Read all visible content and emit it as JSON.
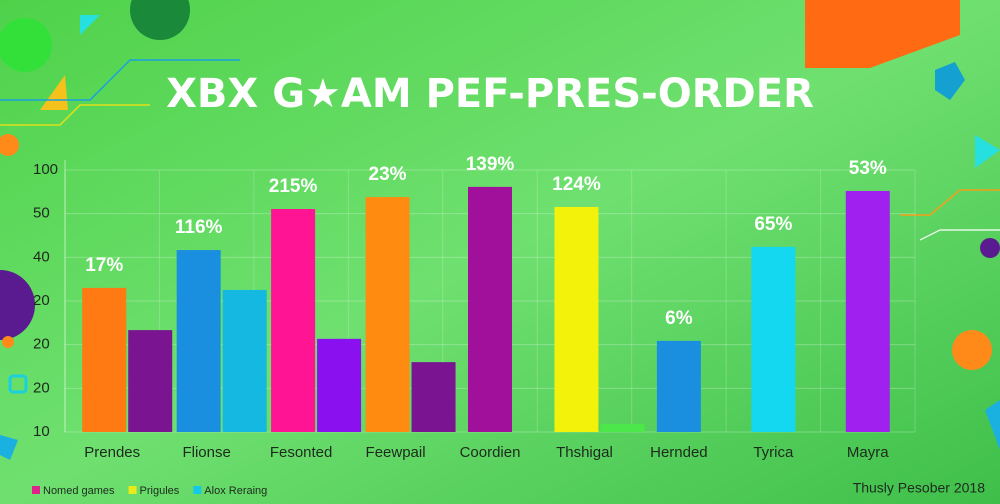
{
  "chart_data": {
    "type": "bar",
    "title": "XBX G★AM PEF-PRES-ORDER",
    "footer": "Thusly Pesober 2018",
    "y_axis_labels": [
      "100",
      "50",
      "40",
      "20",
      "20",
      "20",
      "10"
    ],
    "ylim": [
      10,
      100
    ],
    "categories": [
      "Prendes",
      "Flionse",
      "Fesonted",
      "Feewpail",
      "Coordien",
      "Thshigal",
      "Hernded",
      "Tyrica",
      "Mayra"
    ],
    "bar_labels": [
      "17%",
      "116%",
      "215%",
      "23%",
      "139%",
      "124%",
      "6%",
      "65%",
      "53%"
    ],
    "series": [
      {
        "name": "Nomed games",
        "color": "#e0218a",
        "colors": [
          "#ff7a12",
          "#1a8fe0",
          "#ff1493",
          "#ff8c10",
          "#a0109a",
          "#f2f20a",
          "#1a8fe0",
          "#14d8f0",
          "#a020f0"
        ],
        "values": [
          59.5,
          72.5,
          86.6,
          90.7,
          94.2,
          87.3,
          41.3,
          73.6,
          92.8
        ]
      },
      {
        "name": "Prigules",
        "color": "#e8ea1a",
        "colors": [
          "#7a1490",
          "#14b8e0",
          "#8a10f0",
          "#7a1490",
          null,
          "#4ce84a",
          null,
          null,
          null
        ],
        "values": [
          45,
          58.8,
          42,
          34,
          null,
          12.7,
          null,
          null,
          null
        ]
      },
      {
        "name": "Alox Reraing",
        "color": "#14c8e8",
        "values": [
          null,
          null,
          null,
          null,
          null,
          null,
          null,
          null,
          null
        ]
      }
    ]
  }
}
